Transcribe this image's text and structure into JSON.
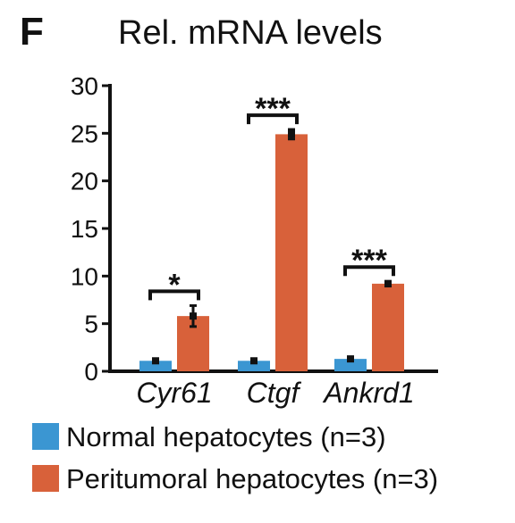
{
  "panel_label": "F",
  "chart_data": {
    "type": "bar",
    "title": "Rel. mRNA levels",
    "xlabel": "",
    "ylabel": "",
    "categories": [
      "Cyr61",
      "Ctgf",
      "Ankrd1"
    ],
    "series": [
      {
        "name": "Normal hepatocytes (n=3)",
        "color": "#3b96d2",
        "values": [
          1.1,
          1.1,
          1.3
        ],
        "errors": [
          0.15,
          0.15,
          0.2
        ]
      },
      {
        "name": "Peritumoral hepatocytes (n=3)",
        "color": "#d8613a",
        "values": [
          5.8,
          24.9,
          9.2
        ],
        "errors": [
          1.1,
          0.5,
          0.25
        ]
      }
    ],
    "significance": [
      "*",
      "***",
      "***"
    ],
    "ylim": [
      0,
      30
    ],
    "yticks": [
      0,
      5,
      10,
      15,
      20,
      25,
      30
    ],
    "grid": false,
    "legend_position": "bottom"
  }
}
